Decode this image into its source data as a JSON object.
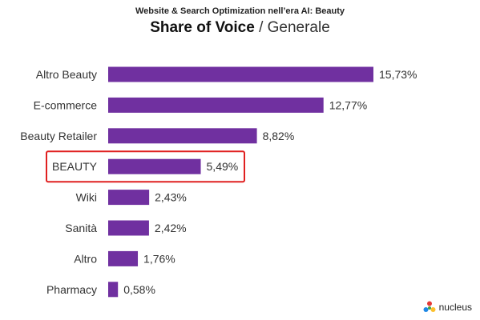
{
  "header": {
    "subtitle": "Website & Search Optimization nell’era AI: Beauty",
    "title_bold": "Share of Voice",
    "title_rest": "/ Generale"
  },
  "chart_data": {
    "type": "bar",
    "orientation": "horizontal",
    "categories": [
      "Altro Beauty",
      "E-commerce",
      "Beauty Retailer",
      "BEAUTY",
      "Wiki",
      "Sanità",
      "Altro",
      "Pharmacy"
    ],
    "values": [
      15.73,
      12.77,
      8.82,
      5.49,
      2.43,
      2.42,
      1.76,
      0.58
    ],
    "value_labels": [
      "15,73%",
      "12,77%",
      "8,82%",
      "5,49%",
      "2,43%",
      "2,42%",
      "1,76%",
      "0,58%"
    ],
    "highlighted_category": "BEAUTY",
    "bar_color": "#7030a0",
    "highlight_color": "#e02020",
    "grid": false,
    "legend": "none"
  },
  "logo": {
    "text": "nucleus",
    "icon": "nucleus-logo-icon"
  }
}
